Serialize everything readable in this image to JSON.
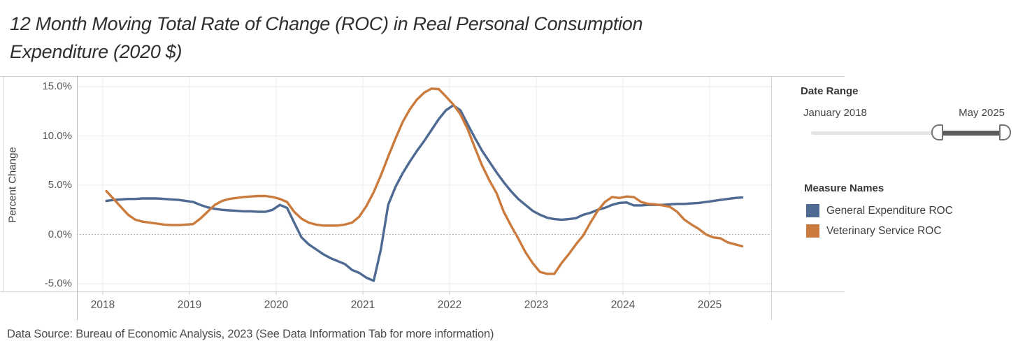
{
  "page": {
    "title_line1": "12 Month Moving Total Rate of Change (ROC) in Real Personal Consumption",
    "title_line2": "Expenditure (2020 $)",
    "caption": "Data Source: Bureau of Economic Analysis, 2023 (See Data Information Tab for more information)"
  },
  "filter": {
    "title": "Date Range",
    "min_label": "January 2018",
    "max_label": "May 2025",
    "handle_positions": [
      0.65,
      1.0
    ]
  },
  "chart_data": {
    "type": "line",
    "title": "12 Month Moving Total Rate of Change (ROC) in Real Personal Consumption Expenditure (2020 $)",
    "xlabel": "",
    "ylabel": "Percent Change",
    "unit": "percent",
    "x_start": "2018-01",
    "x_end": "2025-05",
    "points_per_year": 12,
    "x_tick_labels": [
      "2018",
      "2019",
      "2020",
      "2021",
      "2022",
      "2023",
      "2024",
      "2025"
    ],
    "y_ticks": [
      {
        "label": "15.0%",
        "value": 15
      },
      {
        "label": "10.0%",
        "value": 10
      },
      {
        "label": "5.0%",
        "value": 5
      },
      {
        "label": "0.0%",
        "value": 0
      },
      {
        "label": "-5.0%",
        "value": -5
      }
    ],
    "ylim": [
      -5.8,
      16.1
    ],
    "grid": "horizontal-and-yearly-vertical",
    "zero_line_style": "dotted",
    "legend_title": "Measure Names",
    "legend_position": "right",
    "series": [
      {
        "name": "General Expenditure ROC",
        "color": "#4e6a92",
        "values": [
          3.4,
          3.5,
          3.55,
          3.6,
          3.6,
          3.65,
          3.65,
          3.65,
          3.6,
          3.55,
          3.5,
          3.4,
          3.3,
          3.0,
          2.75,
          2.6,
          2.5,
          2.45,
          2.4,
          2.35,
          2.35,
          2.3,
          2.3,
          2.5,
          3.0,
          2.7,
          1.2,
          -0.3,
          -1.0,
          -1.5,
          -2.0,
          -2.4,
          -2.7,
          -3.0,
          -3.6,
          -3.9,
          -4.4,
          -4.7,
          -1.5,
          3.0,
          4.8,
          6.2,
          7.4,
          8.5,
          9.5,
          10.6,
          11.7,
          12.6,
          13.1,
          12.6,
          11.2,
          9.8,
          8.5,
          7.4,
          6.3,
          5.3,
          4.4,
          3.6,
          3.0,
          2.4,
          2.0,
          1.7,
          1.55,
          1.5,
          1.55,
          1.65,
          2.0,
          2.2,
          2.5,
          2.7,
          3.0,
          3.2,
          3.25,
          2.95,
          2.95,
          3.0,
          3.0,
          3.0,
          3.05,
          3.1,
          3.1,
          3.15,
          3.2,
          3.3,
          3.4,
          3.5,
          3.6,
          3.7,
          3.75
        ]
      },
      {
        "name": "Veterinary Service ROC",
        "color": "#ca7b3d",
        "values": [
          4.4,
          3.6,
          2.8,
          2.0,
          1.5,
          1.3,
          1.2,
          1.1,
          1.0,
          0.95,
          0.95,
          1.0,
          1.05,
          1.6,
          2.3,
          3.0,
          3.4,
          3.6,
          3.7,
          3.8,
          3.85,
          3.9,
          3.9,
          3.8,
          3.6,
          3.3,
          2.3,
          1.6,
          1.2,
          1.0,
          0.9,
          0.9,
          0.9,
          1.0,
          1.2,
          1.8,
          2.9,
          4.3,
          6.0,
          7.9,
          9.7,
          11.4,
          12.7,
          13.7,
          14.4,
          14.8,
          14.75,
          14.0,
          13.2,
          12.2,
          10.7,
          8.8,
          7.0,
          5.5,
          4.2,
          2.3,
          0.9,
          -0.4,
          -1.8,
          -2.9,
          -3.8,
          -4.0,
          -4.0,
          -2.9,
          -2.0,
          -1.0,
          -0.1,
          1.2,
          2.4,
          3.3,
          3.8,
          3.7,
          3.85,
          3.8,
          3.3,
          3.1,
          3.05,
          2.95,
          2.8,
          2.3,
          1.5,
          1.0,
          0.55,
          0.0,
          -0.3,
          -0.4,
          -0.8,
          -1.0,
          -1.2
        ]
      }
    ]
  },
  "colors": {
    "series_blue": "#4e6a92",
    "series_orange": "#ca7b3d",
    "grid_line": "#e9e9e9",
    "year_grid_line": "#ededed",
    "zero_line": "#9e9e9e",
    "border": "#d2d2d2",
    "axis_line": "#b9b9b9",
    "tick_mark": "#c6c6c6"
  }
}
